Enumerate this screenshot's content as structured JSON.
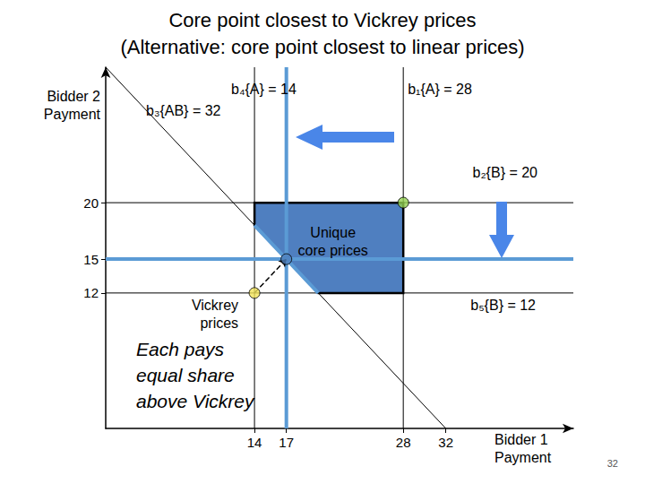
{
  "chart_data": {
    "type": "line",
    "title": "Core point closest to Vickrey prices",
    "subtitle": "(Alternative: core point closest to linear prices)",
    "x_label": "Bidder 1\nPayment",
    "y_label": "Bidder 2\nPayment",
    "xlim": [
      0,
      44
    ],
    "ylim": [
      0,
      32
    ],
    "xticks": [
      14,
      17,
      28,
      32
    ],
    "yticks": [
      12,
      15,
      20
    ],
    "grid": false,
    "constraints": [
      {
        "label": "b₄{A} = 14",
        "x": 14
      },
      {
        "label": "b₁{A} = 28",
        "x": 28
      },
      {
        "label": "b₃{AB} = 32",
        "sum": 32
      },
      {
        "label": "b₂{B} = 20",
        "y": 20
      },
      {
        "label": "b₅{B} = 12",
        "y": 12
      }
    ],
    "core": {
      "x": [
        14,
        14,
        28,
        28,
        20
      ],
      "y": [
        18,
        20,
        20,
        12,
        12
      ],
      "color": "#4f7fc0"
    },
    "highlights": {
      "color": "#5b9bd5",
      "lines": [
        {
          "x": 17
        },
        {
          "y": 15
        },
        {
          "x": [
            14,
            20
          ],
          "y": [
            18,
            12
          ]
        }
      ]
    },
    "points": [
      {
        "label": "Vickrey\nprices",
        "x": 14,
        "y": 12,
        "color": "#f2e35a"
      },
      {
        "label": "Unique\ncore prices",
        "x": 17,
        "y": 15,
        "color": "#4f81bd"
      },
      {
        "x": 28,
        "y": 20,
        "color": "#92d050"
      }
    ],
    "note": "Each pays\nequal share\nabove Vickrey",
    "page": 32
  }
}
